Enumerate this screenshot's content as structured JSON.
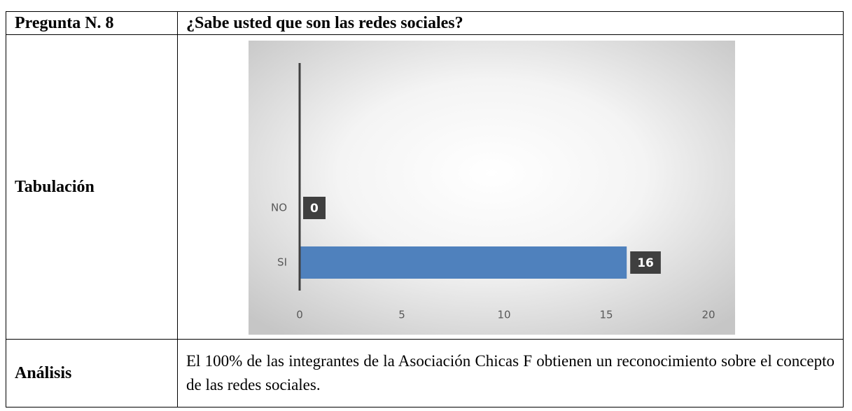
{
  "table": {
    "rows": [
      [
        "Pregunta N. 8",
        "¿Sabe usted que son las redes sociales?"
      ],
      [
        "Tabulación"
      ],
      [
        "Análisis",
        "El 100% de las integrantes de la Asociación Chicas F obtienen un reconocimiento sobre el concepto de las redes sociales."
      ]
    ]
  },
  "chart_data": {
    "type": "bar",
    "orientation": "horizontal",
    "categories": [
      "NO",
      "SI"
    ],
    "values": [
      0,
      16
    ],
    "color": "#4f81bd",
    "xlim": [
      0,
      20
    ],
    "xticks": [
      0,
      5,
      10,
      15,
      20
    ]
  }
}
